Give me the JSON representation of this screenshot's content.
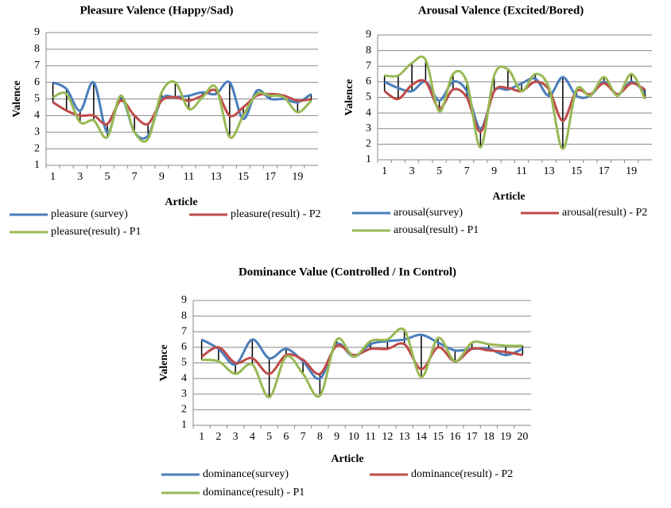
{
  "chart_data": [
    {
      "type": "line",
      "title": "Pleasure Valence (Happy/Sad)",
      "xlabel": "Article",
      "ylabel": "Valence",
      "categories": [
        1,
        null,
        3,
        null,
        5,
        null,
        7,
        null,
        9,
        null,
        11,
        null,
        13,
        null,
        15,
        null,
        17,
        null,
        19,
        null
      ],
      "series": [
        {
          "name": "pleasure (survey)",
          "color": "#4a7ebb",
          "values": [
            6.0,
            5.6,
            4.3,
            6.0,
            3.0,
            5.1,
            3.0,
            2.8,
            5.0,
            5.1,
            5.2,
            5.4,
            5.3,
            6.0,
            3.8,
            5.5,
            5.0,
            5.0,
            4.8,
            5.3
          ]
        },
        {
          "name": "pleasure(result) - P2",
          "color": "#be4b48",
          "values": [
            4.8,
            4.3,
            4.0,
            4.0,
            3.5,
            4.9,
            4.0,
            3.5,
            4.9,
            5.1,
            4.9,
            5.2,
            5.5,
            4.0,
            4.5,
            5.2,
            5.3,
            5.2,
            4.9,
            5.0
          ]
        },
        {
          "name": "pleasure(result) - P1",
          "color": "#98b954",
          "values": [
            5.1,
            5.3,
            3.6,
            3.7,
            2.7,
            5.2,
            3.0,
            2.6,
            5.4,
            6.0,
            4.4,
            5.1,
            5.7,
            2.7,
            4.0,
            5.3,
            5.2,
            5.1,
            4.2,
            4.9
          ]
        }
      ],
      "ylim": [
        1,
        9
      ],
      "yticks": [
        1,
        2,
        3,
        4,
        5,
        6,
        7,
        8,
        9
      ],
      "grid": true,
      "legend": "bottom"
    },
    {
      "type": "line",
      "title": "Arousal Valence (Excited/Bored)",
      "xlabel": "Article",
      "ylabel": "Valence",
      "categories": [
        1,
        null,
        3,
        null,
        5,
        null,
        7,
        null,
        9,
        null,
        11,
        null,
        13,
        null,
        15,
        null,
        17,
        null,
        19,
        null
      ],
      "series": [
        {
          "name": "arousal(survey)",
          "color": "#4a7ebb",
          "values": [
            6.0,
            5.6,
            5.4,
            6.0,
            4.8,
            6.0,
            5.4,
            3.0,
            5.4,
            5.5,
            5.9,
            6.2,
            5.1,
            6.3,
            5.1,
            5.1,
            6.0,
            5.2,
            6.0,
            5.3
          ]
        },
        {
          "name": "arousal(result) - P2",
          "color": "#be4b48",
          "values": [
            5.4,
            4.9,
            5.8,
            6.0,
            4.3,
            5.5,
            5.0,
            2.8,
            5.4,
            5.6,
            5.4,
            6.0,
            5.5,
            3.5,
            5.4,
            5.2,
            5.9,
            5.2,
            5.9,
            5.5
          ]
        },
        {
          "name": "arousal(result) - P1",
          "color": "#98b954",
          "values": [
            6.4,
            6.4,
            7.2,
            7.4,
            4.1,
            6.5,
            6.0,
            1.8,
            6.4,
            6.8,
            5.4,
            6.5,
            5.6,
            1.7,
            5.5,
            5.1,
            6.3,
            5.1,
            6.5,
            4.9
          ]
        }
      ],
      "ylim": [
        1,
        9
      ],
      "yticks": [
        1,
        2,
        3,
        4,
        5,
        6,
        7,
        8,
        9
      ],
      "grid": true,
      "legend": "bottom"
    },
    {
      "type": "line",
      "title": "Dominance Value (Controlled / In Control)",
      "xlabel": "Article",
      "ylabel": "Valence",
      "categories": [
        1,
        2,
        3,
        4,
        5,
        6,
        7,
        8,
        9,
        10,
        11,
        12,
        13,
        14,
        15,
        16,
        17,
        18,
        19,
        20
      ],
      "series": [
        {
          "name": "dominance(survey)",
          "color": "#4a7ebb",
          "values": [
            6.5,
            5.9,
            4.9,
            6.5,
            5.3,
            5.9,
            5.1,
            4.0,
            6.2,
            5.4,
            6.2,
            6.4,
            6.5,
            6.8,
            6.3,
            5.8,
            5.9,
            5.9,
            5.5,
            5.9
          ]
        },
        {
          "name": "dominance(result) - P2",
          "color": "#be4b48",
          "values": [
            5.4,
            6.0,
            5.0,
            5.3,
            4.3,
            5.5,
            5.2,
            4.3,
            6.1,
            5.5,
            5.9,
            5.9,
            6.2,
            4.6,
            6.0,
            5.1,
            5.9,
            5.8,
            5.7,
            5.5
          ]
        },
        {
          "name": "dominance(result) - P1",
          "color": "#98b954",
          "values": [
            5.2,
            5.1,
            4.3,
            4.9,
            2.8,
            5.4,
            4.3,
            2.9,
            6.5,
            5.4,
            6.4,
            6.5,
            7.1,
            4.1,
            6.6,
            5.1,
            6.3,
            6.2,
            6.1,
            6.1
          ]
        }
      ],
      "ylim": [
        1,
        9
      ],
      "yticks": [
        1,
        2,
        3,
        4,
        5,
        6,
        7,
        8,
        9
      ],
      "grid": true,
      "legend": "bottom"
    }
  ]
}
